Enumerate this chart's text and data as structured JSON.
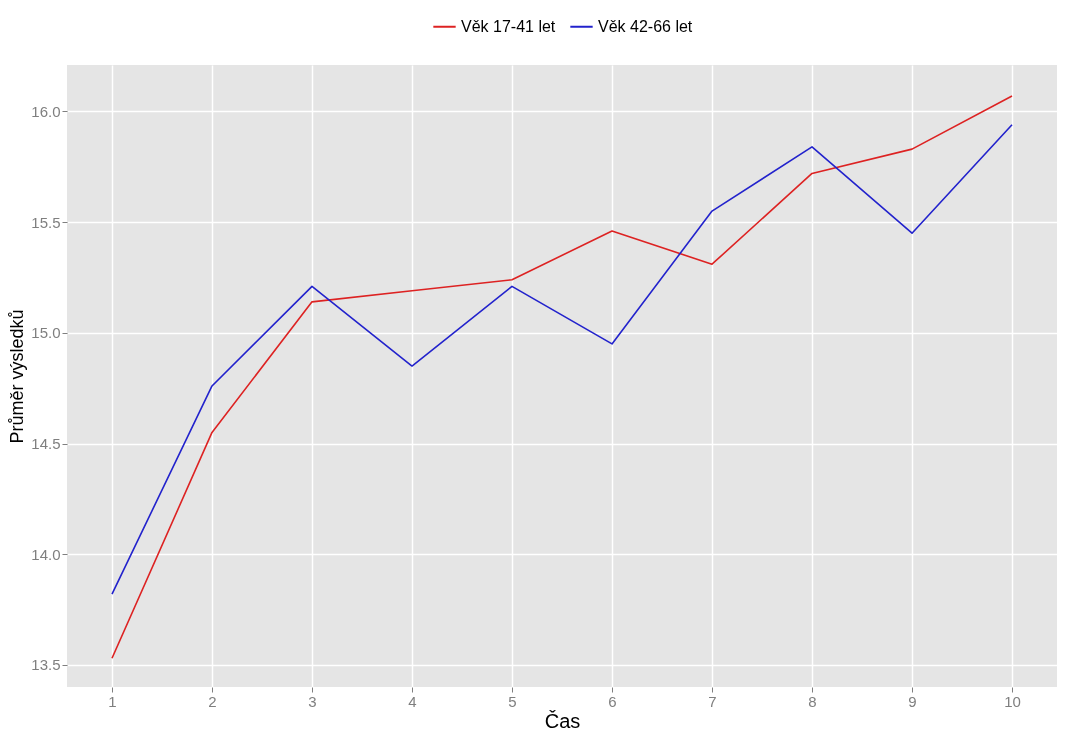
{
  "chart_data": {
    "type": "line",
    "xlabel": "Čas",
    "ylabel": "Průměr výsledků",
    "x": [
      1,
      2,
      3,
      4,
      5,
      6,
      7,
      8,
      9,
      10
    ],
    "series": [
      {
        "name": "Věk 17-41 let",
        "color": "#dd2222",
        "values": [
          13.53,
          14.55,
          15.14,
          15.19,
          15.24,
          15.46,
          15.31,
          15.72,
          15.83,
          16.07
        ]
      },
      {
        "name": "Věk 42-66 let",
        "color": "#2222cc",
        "values": [
          13.82,
          14.76,
          15.21,
          14.85,
          15.21,
          14.95,
          15.55,
          15.84,
          15.45,
          15.94
        ]
      }
    ],
    "xlim": [
      0.55,
      10.45
    ],
    "xticks": [
      1,
      2,
      3,
      4,
      5,
      6,
      7,
      8,
      9,
      10
    ],
    "ylim": [
      13.4,
      16.21
    ],
    "yticks": [
      13.5,
      {
        "value": 14,
        "label": "14.0"
      },
      14.5,
      {
        "value": 15,
        "label": "15.0"
      },
      15.5,
      {
        "value": 16,
        "label": "16.0"
      }
    ],
    "grid": true,
    "legend": "top",
    "marker": "none",
    "line_style": "solid"
  }
}
